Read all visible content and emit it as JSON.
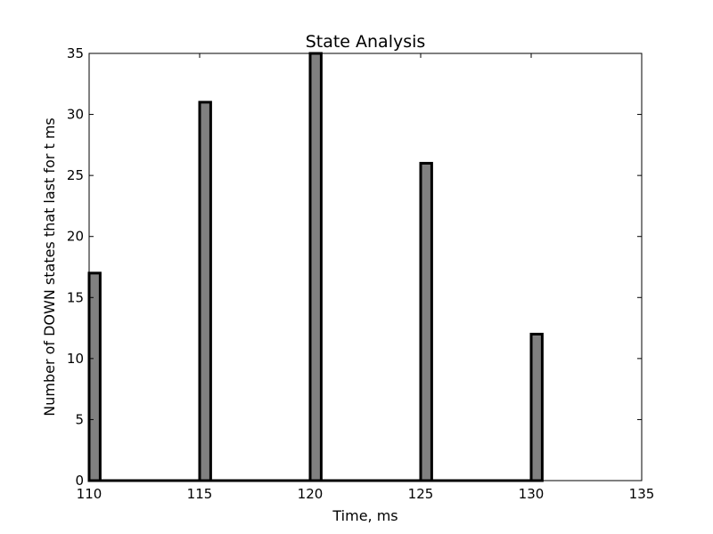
{
  "chart_data": {
    "type": "bar",
    "title": "State Analysis",
    "xlabel": "Time, ms",
    "ylabel": "Number of DOWN states that last for t ms",
    "xlim": [
      110,
      135
    ],
    "ylim": [
      0,
      35
    ],
    "xticks": [
      110,
      115,
      120,
      125,
      130,
      135
    ],
    "yticks": [
      0,
      5,
      10,
      15,
      20,
      25,
      30,
      35
    ],
    "bin_width": 0.5,
    "x": [
      110,
      115,
      120,
      125,
      130
    ],
    "values": [
      17,
      31,
      35,
      26,
      12
    ],
    "grid": false,
    "bar_color": "#808080",
    "edge_color": "#000000"
  }
}
